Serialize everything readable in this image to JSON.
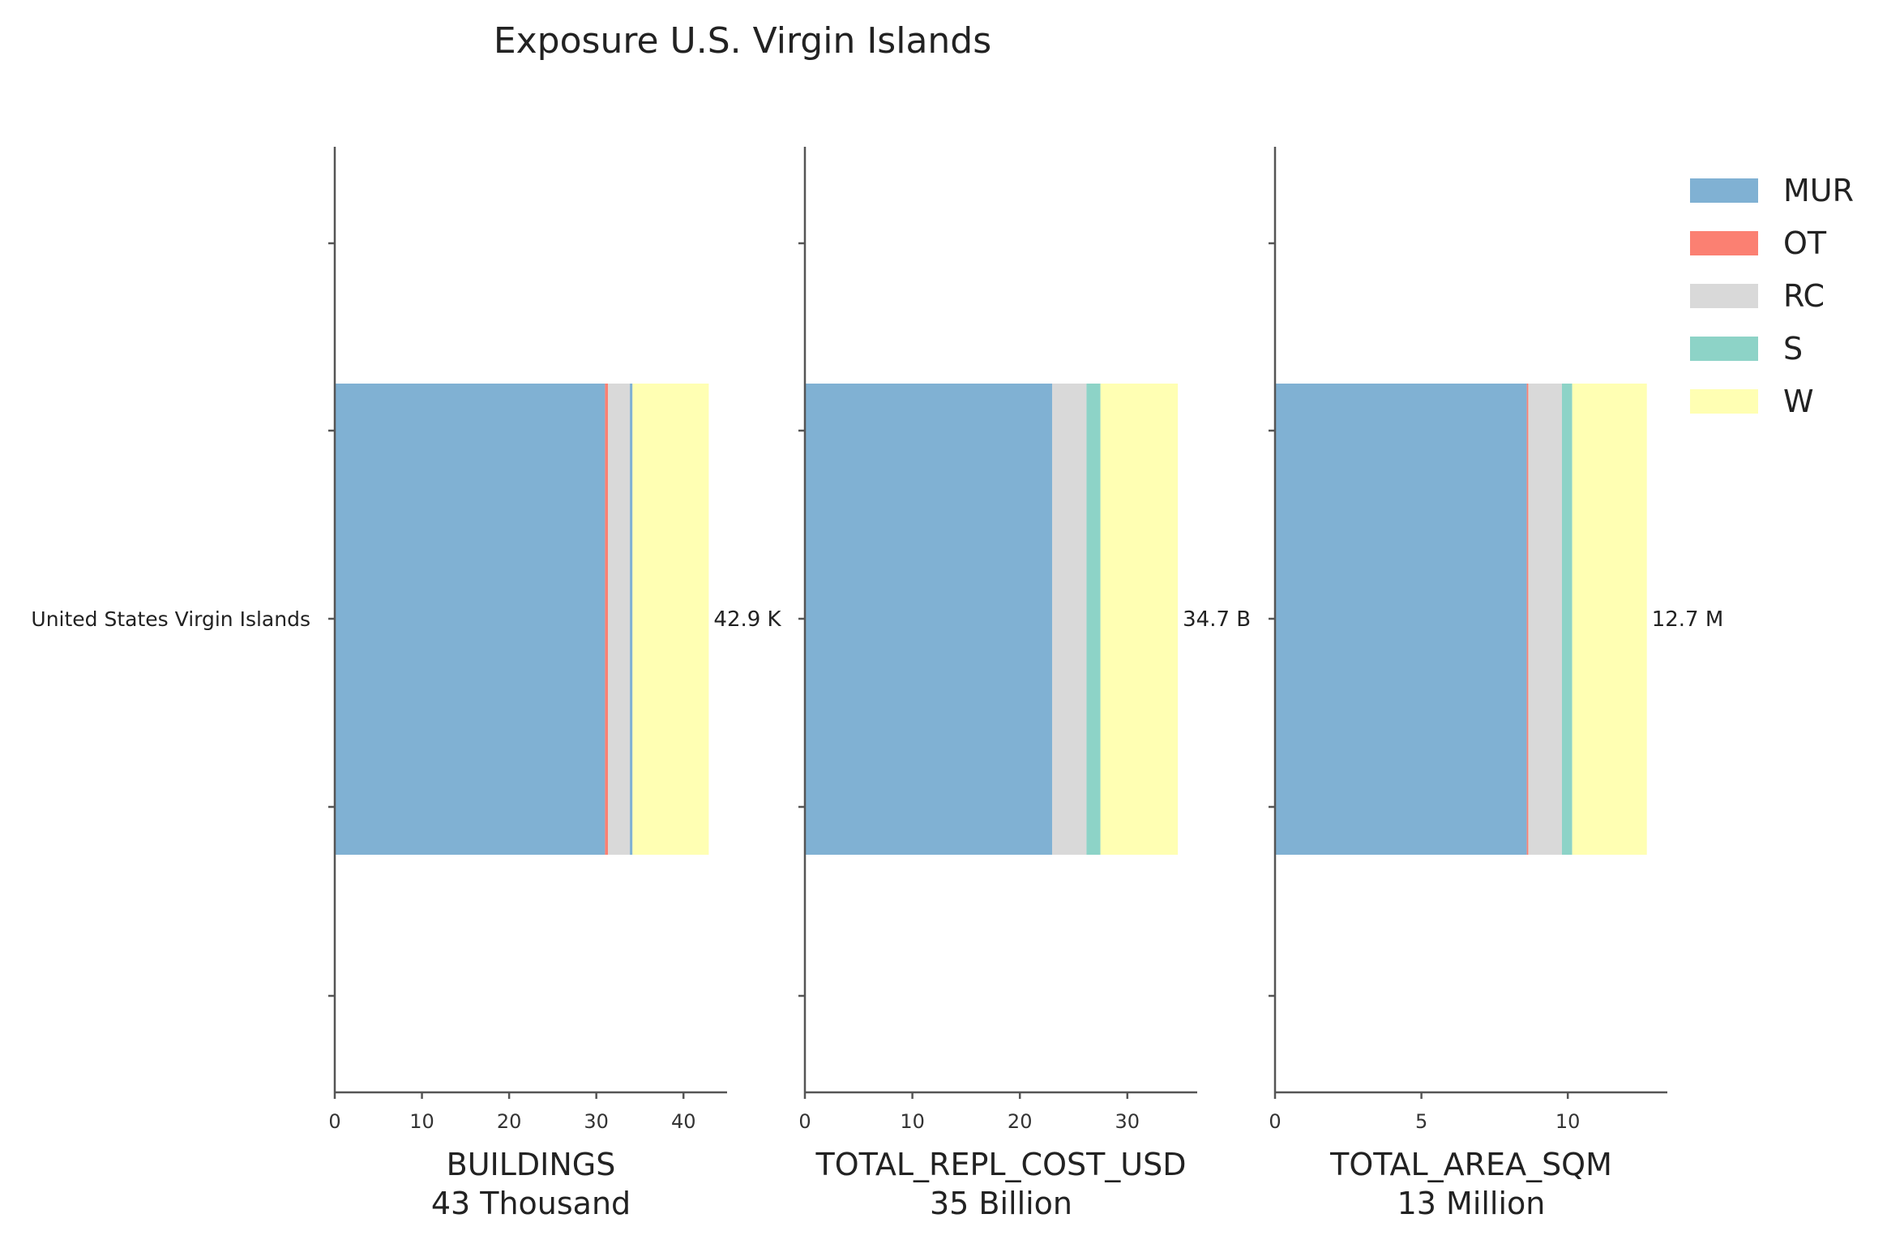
{
  "chart_data": {
    "type": "bar",
    "title": "Exposure U.S. Virgin Islands",
    "category": "United States Virgin Islands",
    "legend_position": "top-right",
    "grid": false,
    "colors": {
      "MUR": "#80b1d3",
      "OT": "#fb8072",
      "RC": "#d9d9d9",
      "S": "#8dd3c7",
      "W": "#ffffb3"
    },
    "legend": [
      "MUR",
      "OT",
      "RC",
      "S",
      "W"
    ],
    "panels": [
      {
        "xlabel": "BUILDINGS",
        "xsub": "43 Thousand",
        "xlim": [
          0,
          45
        ],
        "ticks": [
          0,
          10,
          20,
          30,
          40
        ],
        "total_label": "42.9 K",
        "segments": [
          {
            "name": "MUR",
            "value": 31.0
          },
          {
            "name": "OT",
            "value": 0.35
          },
          {
            "name": "RC",
            "value": 2.5
          },
          {
            "name": "MUR",
            "value": 0.3
          },
          {
            "name": "W",
            "value": 8.75
          }
        ]
      },
      {
        "xlabel": "TOTAL_REPL_COST_USD",
        "xsub": "35 Billion",
        "xlim": [
          0,
          36.5
        ],
        "ticks": [
          0,
          10,
          20,
          30
        ],
        "total_label": "34.7 B",
        "segments": [
          {
            "name": "MUR",
            "value": 23.0
          },
          {
            "name": "RC",
            "value": 3.2
          },
          {
            "name": "S",
            "value": 1.3
          },
          {
            "name": "W",
            "value": 7.2
          }
        ]
      },
      {
        "xlabel": "TOTAL_AREA_SQM",
        "xsub": "13 Million",
        "xlim": [
          0,
          13.4
        ],
        "ticks": [
          0,
          5,
          10
        ],
        "total_label": "12.7 M",
        "segments": [
          {
            "name": "MUR",
            "value": 8.6
          },
          {
            "name": "OT",
            "value": 0.05
          },
          {
            "name": "RC",
            "value": 1.15
          },
          {
            "name": "S",
            "value": 0.35
          },
          {
            "name": "W",
            "value": 2.55
          }
        ]
      }
    ]
  }
}
